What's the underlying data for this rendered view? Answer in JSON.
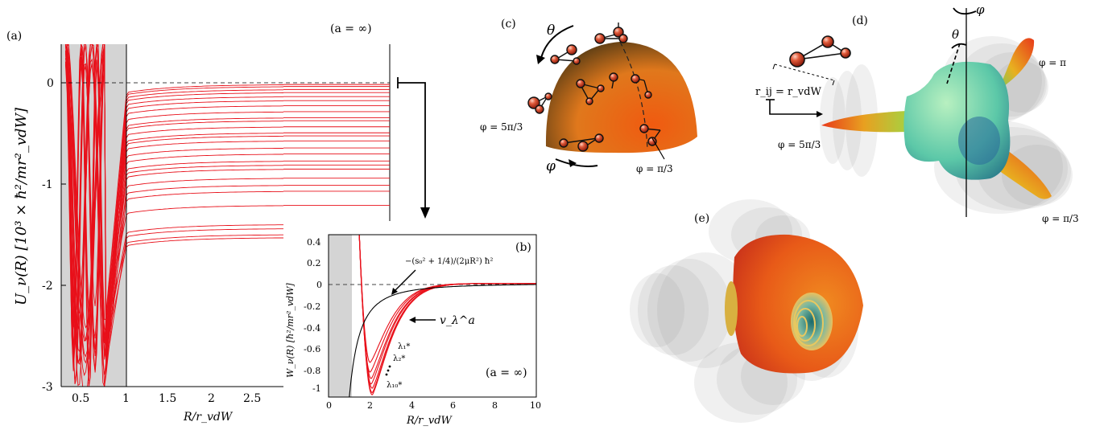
{
  "panels": {
    "a": {
      "label": "(a)",
      "condition": "(a = ∞)",
      "ylabel": "U_ν(R) [10³ × ħ²/mr²_vdW]",
      "xlabel": "R/r_vdW",
      "xticks": [
        "0.5",
        "1",
        "1.5",
        "2",
        "2.5"
      ],
      "yticks": [
        "0",
        "-1",
        "-2",
        "-3"
      ]
    },
    "b": {
      "label": "(b)",
      "condition": "(a = ∞)",
      "ylabel": "W_ν(R) [ħ²/mr²_vdW]",
      "xlabel": "R/r_vdW",
      "xticks": [
        "0",
        "2",
        "4",
        "6",
        "8",
        "10"
      ],
      "yticks": [
        "0.4",
        "0.2",
        "0",
        "-0.2",
        "-0.4",
        "-0.6",
        "-0.8",
        "-1"
      ],
      "annotation_barrier": "−(s₀² + 1/4)/(2μR²) ħ²",
      "annotation_potential": "v_λ^a",
      "state_labels": [
        "λ₁*",
        "λ₂*",
        "λ₁₀*"
      ]
    },
    "c": {
      "label": "(c)",
      "theta": "θ",
      "phi": "φ",
      "phi_left": "φ = 5π/3",
      "phi_right": "φ = π/3"
    },
    "d": {
      "label": "(d)",
      "phi": "φ",
      "theta": "θ",
      "phi_pi": "φ = π",
      "phi_5pi3": "φ = 5π/3",
      "phi_pi3": "φ = π/3",
      "rij": "r_ij = r_vdW"
    },
    "e": {
      "label": "(e)"
    }
  },
  "chart_data": [
    {
      "type": "line",
      "title": "(a = ∞)",
      "xlabel": "R/r_vdW",
      "ylabel": "U_ν(R) [10³ × ħ²/mr²_vdW]",
      "xlim": [
        0.25,
        2.8
      ],
      "ylim": [
        -3,
        0.4
      ],
      "shaded_region": [
        0.25,
        1.0
      ],
      "asymptotes": [
        0.0,
        -0.02,
        -0.05,
        -0.08,
        -0.12,
        -0.16,
        -0.21,
        -0.27,
        -0.33,
        -0.36,
        -0.42,
        -0.48,
        -0.51,
        -0.56,
        -0.63,
        -0.69,
        -0.76,
        -0.8,
        -0.84,
        -0.93,
        -1.0,
        -1.06,
        -1.2,
        -1.39,
        -1.43,
        -1.49,
        -1.52
      ],
      "series_count": 27
    },
    {
      "type": "line",
      "title": "(a = ∞)",
      "xlabel": "R/r_vdW",
      "ylabel": "W_ν(R) [ħ²/mr²_vdW]",
      "xlim": [
        0,
        10
      ],
      "ylim": [
        -1.05,
        0.45
      ],
      "shaded_region": [
        0,
        1.0
      ],
      "minima": [
        {
          "R": 2.0,
          "W": -0.73
        },
        {
          "R": 2.0,
          "W": -0.82
        },
        {
          "R": 2.05,
          "W": -0.88
        },
        {
          "R": 2.05,
          "W": -0.93
        },
        {
          "R": 2.1,
          "W": -0.97
        },
        {
          "R": 2.1,
          "W": -1.01
        },
        {
          "R": 2.1,
          "W": -1.03
        }
      ],
      "barrier_curve": "-(s0^2+1/4)/(2 mu R^2)",
      "colors": {
        "states": "#e8101a",
        "barrier": "#000000"
      }
    }
  ]
}
